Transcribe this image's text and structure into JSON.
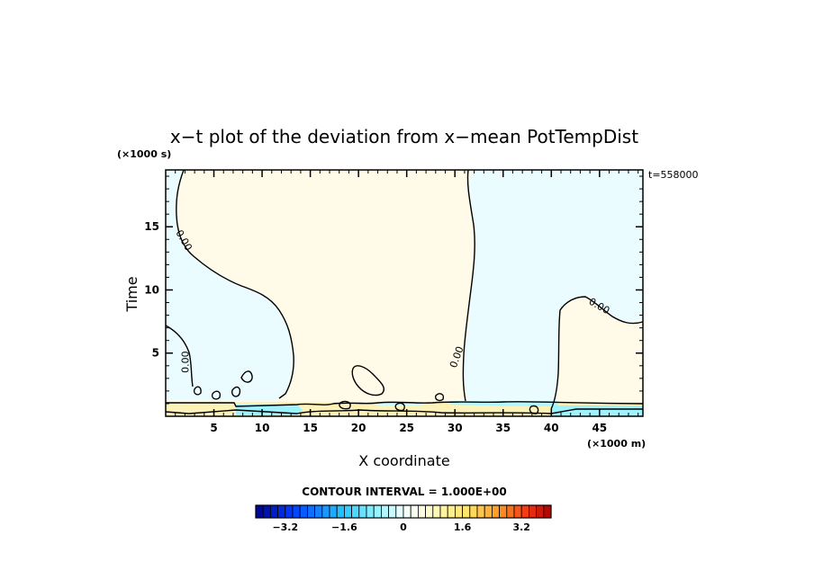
{
  "chart_data": {
    "type": "contour",
    "title": "x−t plot of the deviation from x−mean PotTempDist",
    "xlabel": "X coordinate",
    "ylabel": "Time",
    "x_unit": "(×1000 m)",
    "y_unit": "(×1000 s)",
    "time_note": "t=558000",
    "xlim": [
      0,
      49.5
    ],
    "ylim": [
      0,
      19.5
    ],
    "x_ticks": [
      5,
      10,
      15,
      20,
      25,
      30,
      35,
      40,
      45
    ],
    "y_ticks": [
      5,
      10,
      15
    ],
    "x_tick_labels": [
      "5",
      "10",
      "15",
      "20",
      "25",
      "30",
      "35",
      "40",
      "45"
    ],
    "y_tick_labels": [
      "5",
      "10",
      "15"
    ],
    "contour_labels": [
      {
        "text": "0.00",
        "x": 1.6,
        "y": 13.8,
        "angle": 60
      },
      {
        "text": "0.00",
        "x": 2.4,
        "y": 4.3,
        "angle": -90
      },
      {
        "text": "0.00",
        "x": 30.5,
        "y": 4.6,
        "angle": -70
      },
      {
        "text": "0.00",
        "x": 44.8,
        "y": 8.5,
        "angle": 30
      }
    ],
    "regions": [
      {
        "name": "slightly negative (left column)",
        "x": [
          0,
          13
        ],
        "y": [
          1,
          19.5
        ],
        "value": -0.3
      },
      {
        "name": "slightly positive (center)",
        "x": [
          1.5,
          31.5
        ],
        "y": [
          1,
          19.5
        ],
        "value": 0.3
      },
      {
        "name": "slightly negative (right)",
        "x": [
          31,
          49.5
        ],
        "y": [
          1,
          19.5
        ],
        "value": -0.3
      },
      {
        "name": "slightly positive (lower right)",
        "x": [
          40,
          49.5
        ],
        "y": [
          1,
          9.5
        ],
        "value": 0.3
      }
    ],
    "colorbar": {
      "label": "CONTOUR INTERVAL = 1.000E+00",
      "tick_labels": [
        "−3.2",
        "−1.6",
        "0",
        "1.6",
        "3.2"
      ],
      "tick_values": [
        -3.2,
        -1.6,
        0,
        1.6,
        3.2
      ],
      "range": [
        -4.0,
        4.0
      ],
      "step": 0.2
    },
    "colors": {
      "pos_light": "#fffbe8",
      "neg_light": "#eafcff",
      "pos_band": "#fdf2b8",
      "neg_band": "#9ff3ff"
    }
  }
}
